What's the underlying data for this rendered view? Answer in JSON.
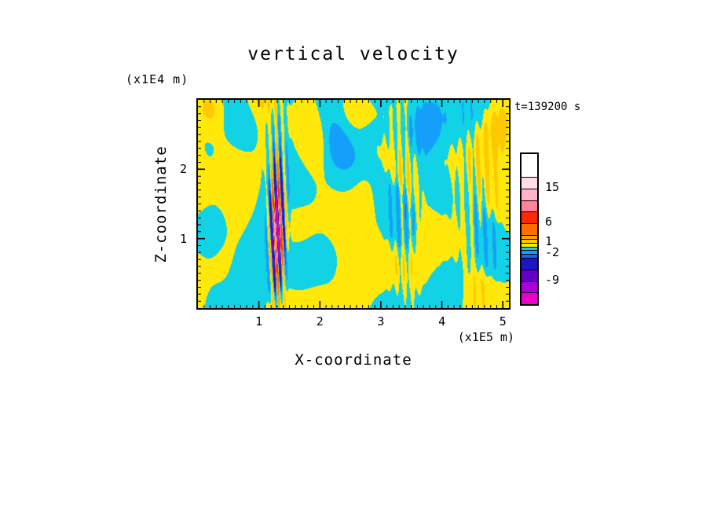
{
  "figure": {
    "title": "vertical velocity",
    "time_label": "t=139200 s",
    "x_axis": {
      "label": "X-coordinate",
      "unit": "(x1E5 m)"
    },
    "z_axis": {
      "label": "Z-coordinate",
      "unit": "(x1E4 m)"
    }
  },
  "chart_data": {
    "type": "heatmap",
    "title": "vertical velocity",
    "annotation": "t=139200 s",
    "xlabel": "X-coordinate",
    "x_unit": "(x1E5 m)",
    "ylabel": "Z-coordinate",
    "z_unit": "(x1E4 m)",
    "x_range": [
      0,
      5.1
    ],
    "z_range": [
      0,
      3.0
    ],
    "x_ticks": [
      1,
      2,
      3,
      4,
      5
    ],
    "z_ticks": [
      1,
      2
    ],
    "minor_tick_step": 0.1,
    "grid": false,
    "legend_position": "right-colorbar",
    "colorbar": {
      "top_value": 24,
      "bottom_value": -15,
      "levels_desc": [
        18,
        15,
        12,
        9,
        6,
        3,
        2,
        1,
        0,
        -1,
        -2,
        -3,
        -6,
        -9,
        -12
      ],
      "colors_desc": [
        "#ffffff",
        "#ffdce6",
        "#ffb4c8",
        "#ff8296",
        "#ff2800",
        "#ff6e00",
        "#ffa000",
        "#ffc800",
        "#ffe80a",
        "#12d2e6",
        "#14a0fa",
        "#1464f0",
        "#1e14c8",
        "#6400c8",
        "#aa00dc",
        "#eb00c8"
      ],
      "ticks": [
        {
          "v": 15,
          "label": "15"
        },
        {
          "v": 6,
          "label": "6"
        },
        {
          "v": 1,
          "label": "1"
        },
        {
          "v": -2,
          "label": "-2"
        },
        {
          "v": -9,
          "label": "-9"
        }
      ]
    },
    "field": {
      "description": "Filled-contour vertical velocity field: alternating yellow (positive) and cyan (negative) gravity-wave bands; intense striated packet near x=1.3 reaching roughly -12 to +15; fine vertical striations near x=3.4 and x=4.5; broad positive patches near the top of the domain.",
      "sat": 0.92,
      "waves": [
        {
          "a": 0.9,
          "kx": 3.2,
          "kz": 1.1,
          "p": 0.3,
          "mod": {
            "a": 2.2,
            "kx": 0.9,
            "kz": 1.4,
            "p": 1.0
          }
        },
        {
          "a": 0.7,
          "kx": 5.1,
          "kz": -1.7,
          "p": 1.7,
          "mod": {
            "a": 1.6,
            "kx": 1.5,
            "kz": 0.8,
            "p": 2.2
          }
        },
        {
          "a": 0.55,
          "kx": 1.4,
          "kz": 3.8,
          "p": 0.6
        },
        {
          "a": 0.5,
          "kx": 8.3,
          "kz": 0.9,
          "p": 2.1,
          "mod": {
            "a": 1.2,
            "kx": 0.6,
            "kz": 2.3,
            "p": 0.5
          }
        },
        {
          "a": 0.45,
          "kx": 2.2,
          "kz": -5.2,
          "p": 4.0
        }
      ],
      "packets": [
        {
          "xc": 1.3,
          "xw": 0.1,
          "zc": 1.1,
          "zw": 0.7,
          "amp": 15.0,
          "freq": 62,
          "zfreq": 4,
          "p": 0.5
        },
        {
          "xc": 1.3,
          "xw": 0.14,
          "zc": 2.0,
          "zw": 1.0,
          "amp": 2.0,
          "freq": 58,
          "zfreq": 3,
          "p": 1.0
        },
        {
          "xc": 3.38,
          "xw": 0.22,
          "zc": 1.5,
          "zw": 1.3,
          "amp": 1.2,
          "freq": 50,
          "zfreq": 2,
          "p": 1.2
        },
        {
          "xc": 4.55,
          "xw": 0.33,
          "zc": 1.6,
          "zw": 1.2,
          "amp": 1.0,
          "freq": 44,
          "zfreq": 2,
          "p": 2.6
        },
        {
          "xc": 2.8,
          "xw": 2.8,
          "zc": 2.55,
          "zw": 0.45,
          "amp": 0.9,
          "freq": 1.3,
          "zfreq": 0,
          "p": 0.8
        }
      ]
    }
  }
}
